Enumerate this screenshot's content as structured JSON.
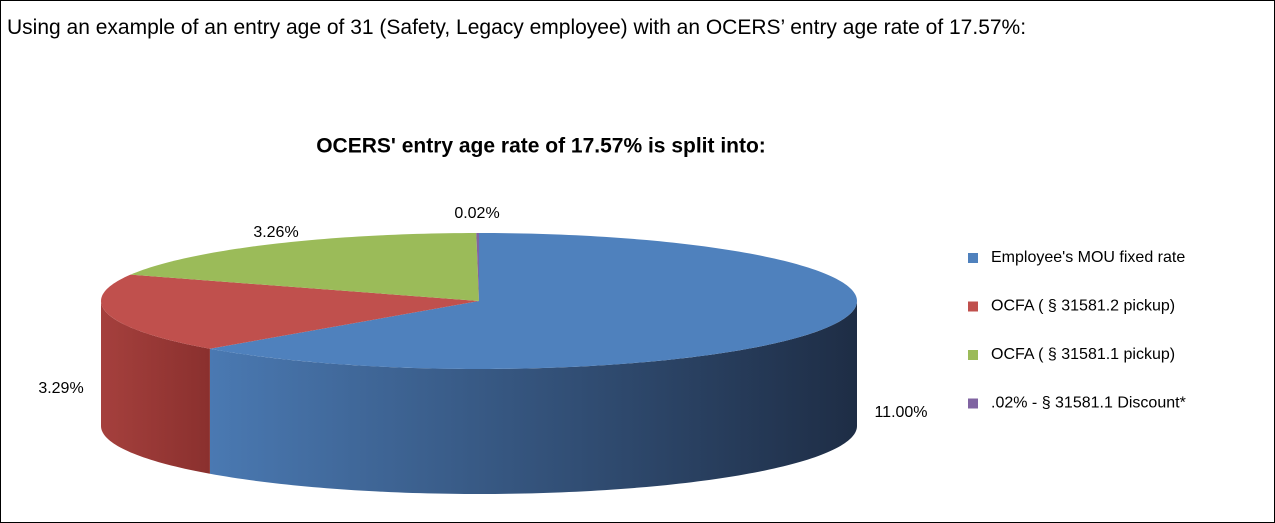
{
  "intro": "Using an example of an entry age of 31 (Safety, Legacy employee) with an OCERS’ entry age rate of 17.57%:",
  "chart_data": {
    "type": "pie",
    "title": "OCERS' entry age rate of 17.57% is split into:",
    "categories": [
      "Employee's MOU fixed rate",
      "OCFA ( § 31581.2 pickup)",
      "OCFA ( § 31581.1 pickup)",
      ".02% - § 31581.1 Discount*"
    ],
    "values": [
      11.0,
      3.29,
      3.26,
      0.02
    ],
    "value_labels": [
      "11.00%",
      "3.29%",
      "3.26%",
      "0.02%"
    ],
    "colors": [
      "#4f81bd",
      "#c0504d",
      "#9bbb59",
      "#8064a2"
    ],
    "legend": "right"
  }
}
